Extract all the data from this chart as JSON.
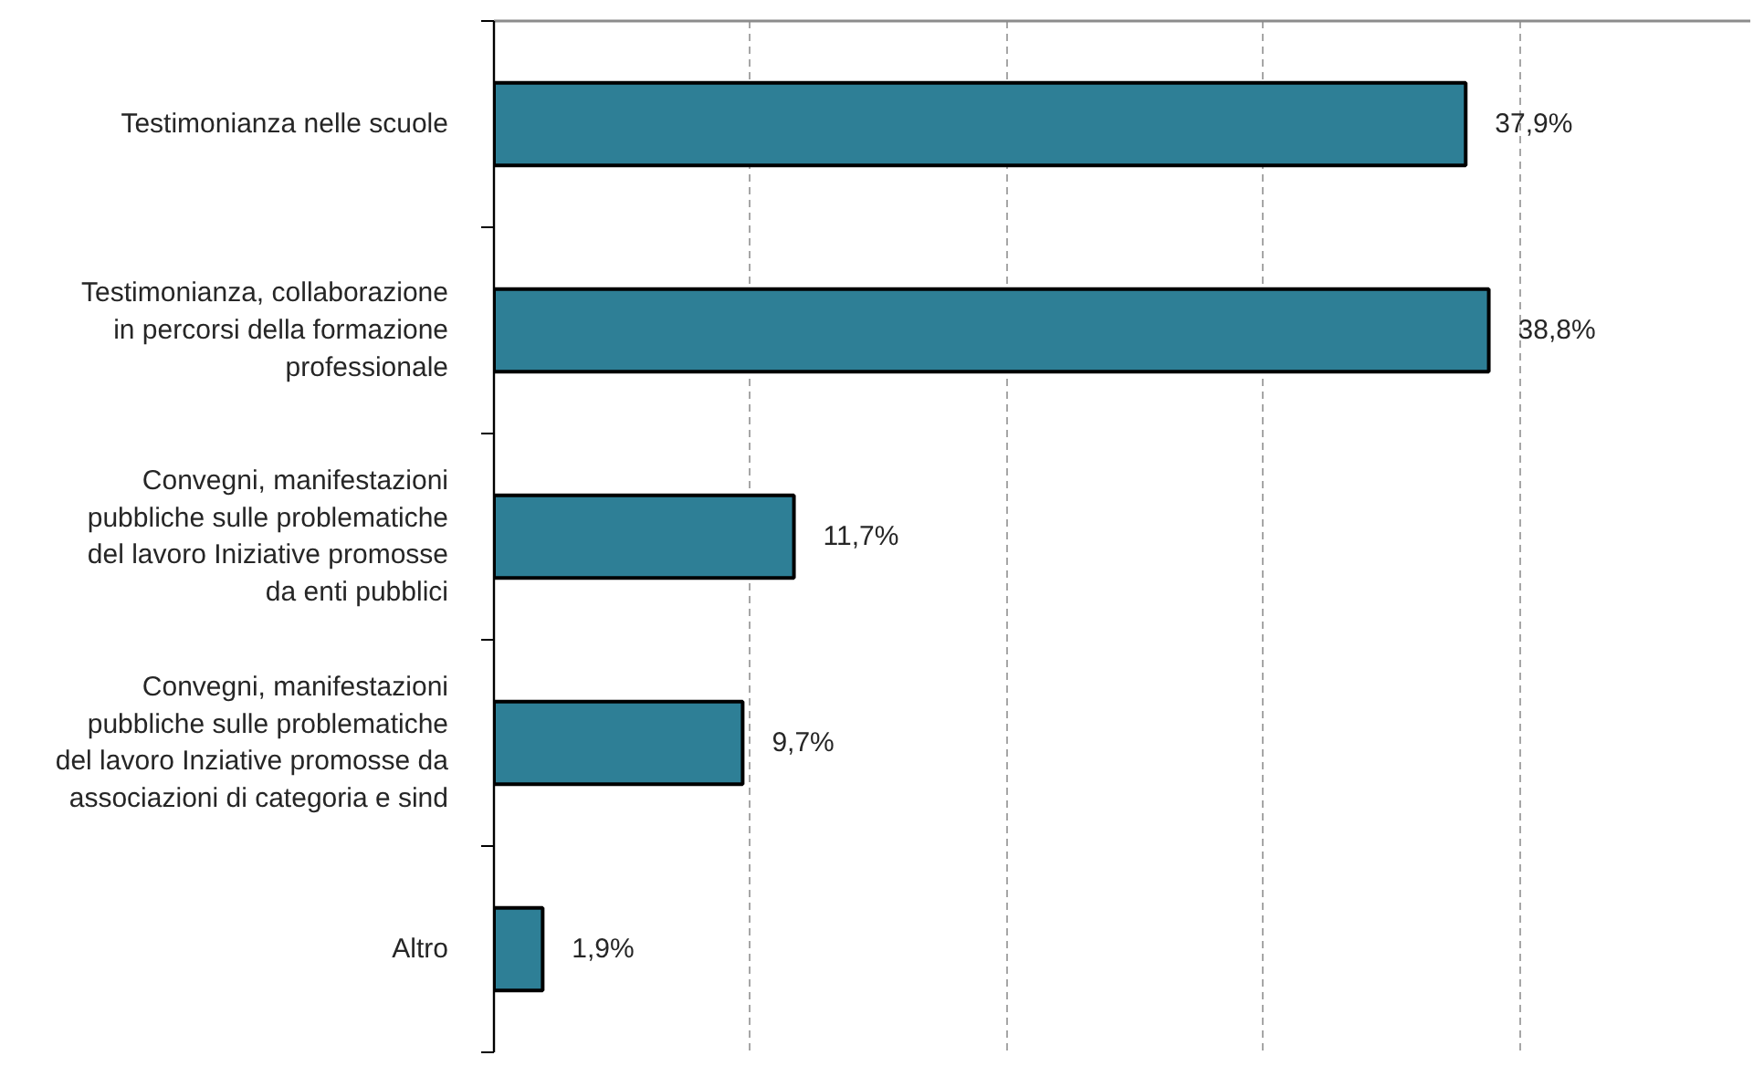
{
  "chart_data": {
    "type": "bar",
    "orientation": "horizontal",
    "categories": [
      "Testimonianza nelle scuole",
      "Testimonianza, collaborazione\nin percorsi della formazione\nprofessionale",
      "Convegni, manifestazioni\npubbliche sulle problematiche\ndel lavoro Iniziative promosse\nda enti pubblici",
      "Convegni, manifestazioni\npubbliche sulle problematiche\ndel lavoro Inziative promosse da\nassociazioni di categoria e sind",
      "Altro"
    ],
    "values": [
      37.9,
      38.8,
      11.7,
      9.7,
      1.9
    ],
    "value_labels": [
      "37,9%",
      "38,8%",
      "11,7%",
      "9,7%",
      "1,9%"
    ],
    "color": "#2e7f96",
    "xlim": [
      0,
      49
    ],
    "xticks": [
      {
        "value": 10,
        "label": null
      },
      {
        "value": 20,
        "label": null
      },
      {
        "value": 30,
        "label": null
      },
      {
        "value": 40,
        "label": null
      }
    ],
    "grid": "x",
    "tick_labels": "y"
  }
}
